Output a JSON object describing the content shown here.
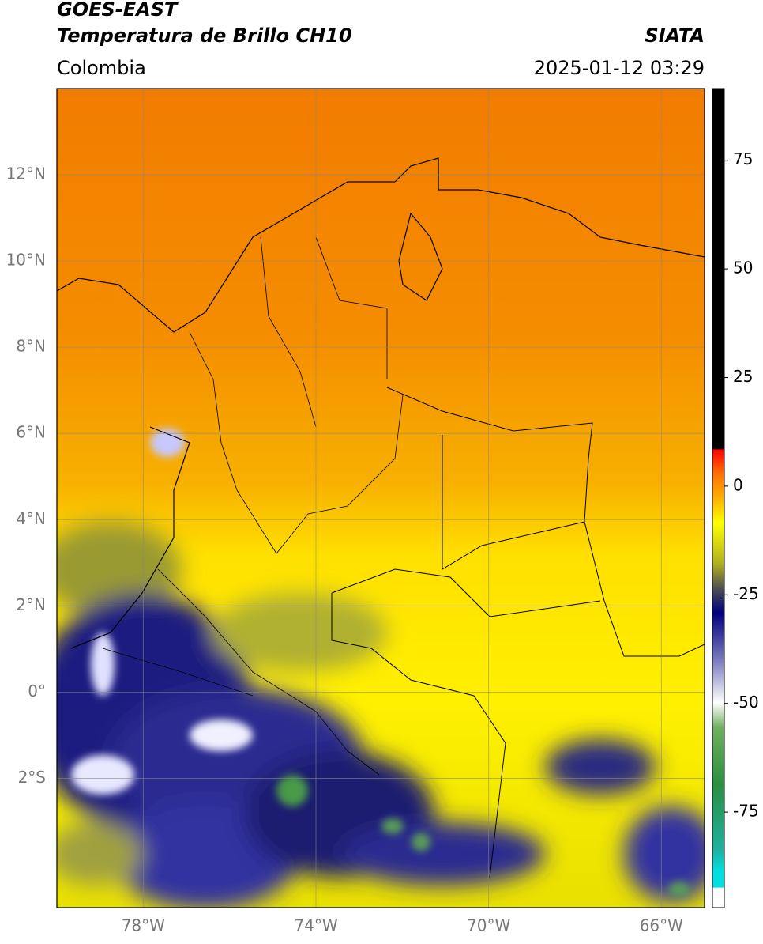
{
  "header": {
    "title": "GOES-EAST",
    "subtitle": "Temperatura de Brillo CH10",
    "source": "SIATA",
    "region": "Colombia",
    "timestamp": "2025-01-12 03:29"
  },
  "map": {
    "lonlim": [
      -80,
      -65
    ],
    "latlim": [
      -5,
      14
    ],
    "lat_ticks": [
      {
        "value": 12,
        "label": "12°N"
      },
      {
        "value": 10,
        "label": "10°N"
      },
      {
        "value": 8,
        "label": "8°N"
      },
      {
        "value": 6,
        "label": "6°N"
      },
      {
        "value": 4,
        "label": "4°N"
      },
      {
        "value": 2,
        "label": "2°N"
      },
      {
        "value": 0,
        "label": "0°"
      },
      {
        "value": -2,
        "label": "2°S"
      }
    ],
    "lon_ticks": [
      {
        "value": -78,
        "label": "78°W"
      },
      {
        "value": -74,
        "label": "74°W"
      },
      {
        "value": -70,
        "label": "70°W"
      },
      {
        "value": -66,
        "label": "66°W"
      }
    ],
    "grid": true
  },
  "colorbar": {
    "lim": [
      -97,
      91.5
    ],
    "ticks": [
      75,
      50,
      25,
      0,
      -25,
      -50,
      -75
    ]
  }
}
